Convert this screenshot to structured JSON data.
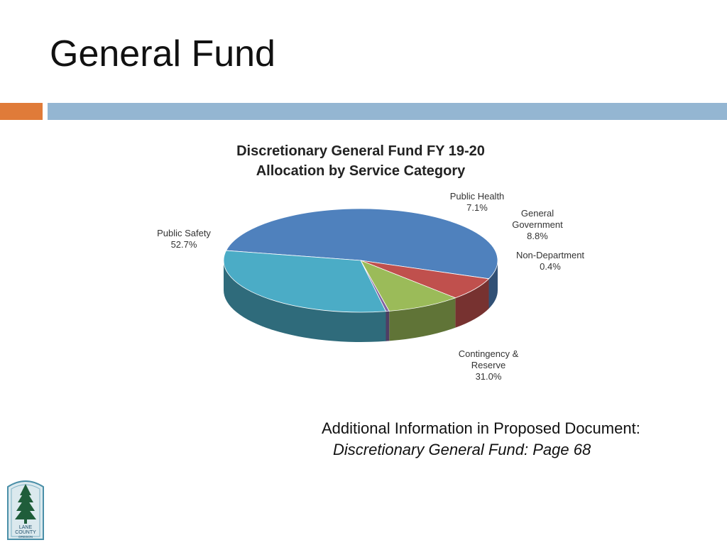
{
  "slide": {
    "title": "General Fund",
    "accent_color": "#E07B39",
    "rule_color": "#94B6D2",
    "note_line_1": "Additional Information in Proposed Document:",
    "note_line_2": "Discretionary General Fund: Page 68"
  },
  "chart_data": {
    "type": "pie",
    "title_line_1": "Discretionary General Fund FY 19-20",
    "title_line_2": "Allocation by Service Category",
    "slices": [
      {
        "name": "Public Safety",
        "value": 52.7,
        "label": "52.7%",
        "color": "#4F81BD"
      },
      {
        "name": "Public Health",
        "value": 7.1,
        "label": "7.1%",
        "color": "#C0504D"
      },
      {
        "name": "General Government",
        "value": 8.8,
        "label": "8.8%",
        "color": "#9BBB59"
      },
      {
        "name": "Non-Department",
        "value": 0.4,
        "label": "0.4%",
        "color": "#8064A2"
      },
      {
        "name": "Contingency & Reserve",
        "value": 31.0,
        "label": "31.0%",
        "color": "#4BACC6"
      }
    ]
  },
  "logo": {
    "line_1": "LANE",
    "line_2": "COUNTY",
    "line_3": "OREGON",
    "icon": "tree-icon"
  }
}
